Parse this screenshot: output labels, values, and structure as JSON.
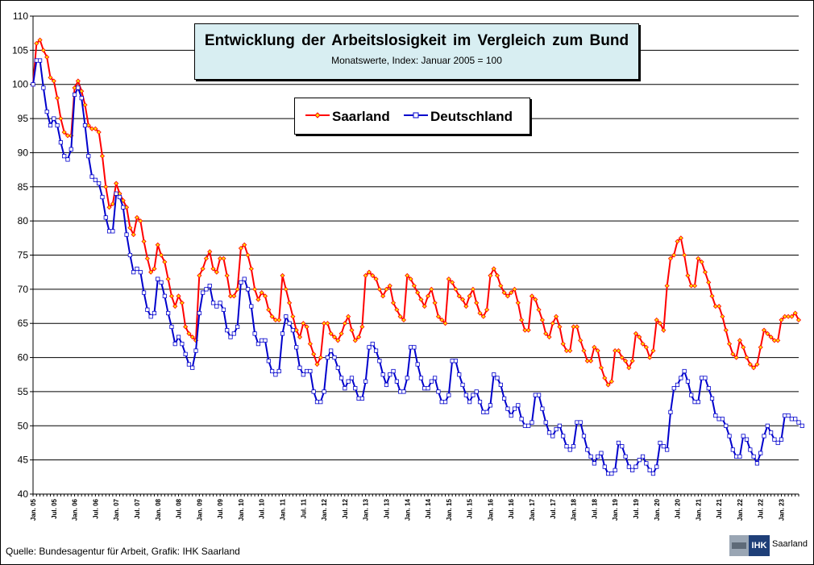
{
  "chart_data": {
    "type": "line",
    "title": "Entwicklung  der Arbeitslosigkeit  im Vergleich  zum Bund",
    "subtitle": "Monatswerte,  Index:  Januar 2005 = 100",
    "xlabel": "",
    "ylabel": "",
    "ylim": [
      40,
      110
    ],
    "yticks": [
      40,
      45,
      50,
      55,
      60,
      65,
      70,
      75,
      80,
      85,
      90,
      95,
      100,
      105,
      110
    ],
    "grid": true,
    "legend_position": "top-center",
    "x_start": "2005-01",
    "x_tick_labels": [
      "Jan. 05",
      "Jul. 05",
      "Jan. 06",
      "Jul. 06",
      "Jan. 07",
      "Jul. 07",
      "Jan. 08",
      "Jul. 08",
      "Jan. 09",
      "Jul. 09",
      "Jan. 10",
      "Jul. 10",
      "Jan. 11",
      "Jul. 11",
      "Jan. 12",
      "Jul. 12",
      "Jan. 13",
      "Jul. 13",
      "Jan. 14",
      "Jul. 14",
      "Jan. 15",
      "Jul. 15",
      "Jan. 16",
      "Jul. 16",
      "Jan. 17",
      "Jul. 17",
      "Jan. 18",
      "Jul. 18",
      "Jan. 19",
      "Jul. 19",
      "Jan. 20",
      "Jul. 20",
      "Jan. 21",
      "Jul. 21",
      "Jan. 22",
      "Jul. 22",
      "Jan. 23"
    ],
    "series": [
      {
        "name": "Saarland",
        "color": "#ff0000",
        "values": [
          100,
          106,
          106.5,
          105,
          104,
          101,
          100.5,
          98,
          95,
          93,
          92.5,
          92.5,
          99.5,
          100.5,
          99,
          97,
          94,
          93.5,
          93.5,
          93,
          89.5,
          85,
          82,
          82.5,
          85.5,
          84,
          83,
          82,
          79,
          78,
          80.5,
          80,
          77,
          74.5,
          72.5,
          73,
          76.5,
          75,
          74,
          71.5,
          69,
          67.5,
          69,
          68,
          64.5,
          63.5,
          63,
          62.5,
          72,
          73,
          74.5,
          75.5,
          73,
          72.5,
          74.5,
          74.5,
          72,
          69,
          69,
          70,
          76,
          76.5,
          75,
          73,
          70,
          68.5,
          69.5,
          69,
          67,
          66,
          65.5,
          65.5,
          72,
          70,
          68,
          66,
          64,
          63,
          65,
          64.5,
          62,
          60.5,
          59,
          60,
          65,
          65,
          63.5,
          63,
          62.5,
          63.5,
          65,
          66,
          64,
          62.5,
          63,
          64.5,
          72,
          72.5,
          72,
          71.5,
          70,
          69,
          70,
          70.5,
          68,
          67,
          66,
          65.5,
          72,
          71.5,
          70.5,
          69.5,
          68.5,
          67.5,
          69,
          70,
          68,
          66,
          65.5,
          65,
          71.5,
          71,
          70,
          69,
          68.5,
          67.5,
          69,
          70,
          68,
          66.5,
          66,
          67,
          72,
          73,
          72,
          70.5,
          69.5,
          69,
          69.5,
          70,
          68,
          65.5,
          64,
          64,
          69,
          68.5,
          67,
          65.5,
          63.5,
          63,
          65,
          66,
          64.5,
          62,
          61,
          61,
          64.5,
          64.5,
          62.5,
          61,
          59.5,
          59.5,
          61.5,
          61,
          58.5,
          57,
          56,
          56.5,
          61,
          61,
          60,
          59.5,
          58.5,
          59.5,
          63.5,
          63,
          62,
          61.5,
          60,
          61,
          65.5,
          65,
          64,
          70.5,
          74.5,
          75,
          77,
          77.5,
          75,
          72,
          70.5,
          70.5,
          74.5,
          74,
          72.5,
          71,
          69,
          67.5,
          67.5,
          66,
          64,
          62,
          60.5,
          60,
          62.5,
          61.5,
          60,
          59,
          58.5,
          59,
          61.5,
          64,
          63.5,
          63,
          62.5,
          62.5,
          65.5,
          66,
          66,
          66,
          66.5,
          65.5
        ]
      },
      {
        "name": "Deutschland",
        "color": "#0000cc",
        "values": [
          100,
          103.5,
          103.5,
          99.5,
          96,
          94,
          95,
          94,
          91.5,
          89.5,
          89,
          90.5,
          98.5,
          99.5,
          98,
          94,
          89.5,
          86.5,
          86,
          85.5,
          83.5,
          80.5,
          78.5,
          78.5,
          84,
          83.5,
          82,
          78,
          75,
          72.5,
          73,
          72.5,
          69.5,
          67,
          66,
          66.5,
          71.5,
          71,
          69,
          66.5,
          64.5,
          62,
          63,
          62,
          60.5,
          59,
          58.5,
          61,
          66.5,
          69.5,
          70,
          70.5,
          68,
          67.5,
          68,
          67,
          64,
          63,
          63.5,
          64.5,
          71,
          71.5,
          70,
          67.5,
          63.5,
          62,
          62.5,
          62.5,
          59.5,
          58,
          57.5,
          58,
          63.5,
          66,
          65,
          64,
          61.5,
          58.5,
          57.5,
          58,
          58,
          55,
          53.5,
          53.5,
          55,
          60,
          61,
          60,
          58.5,
          57,
          55.5,
          56.5,
          57,
          55.5,
          54,
          54,
          56.5,
          61.5,
          62,
          61,
          59.5,
          57.5,
          56,
          57.5,
          58,
          56.5,
          55,
          55,
          57,
          61.5,
          61.5,
          59,
          57,
          55.5,
          55.5,
          56.5,
          57,
          55,
          53.5,
          53.5,
          54.5,
          59.5,
          59.5,
          57.5,
          56,
          54.5,
          53.5,
          54.5,
          55,
          53.5,
          52,
          52,
          53,
          57.5,
          57,
          56,
          54,
          52.5,
          51.5,
          52.5,
          53,
          51,
          50,
          50,
          50.5,
          54.5,
          54.5,
          52.5,
          50.5,
          49,
          48.5,
          49.5,
          50,
          48.5,
          47,
          46.5,
          47,
          50.5,
          50.5,
          48.5,
          46.5,
          45.5,
          44.5,
          45.5,
          46,
          44,
          43,
          43,
          43.5,
          47.5,
          47,
          45.5,
          44,
          43.5,
          44,
          45,
          45.5,
          44.5,
          43.5,
          43,
          44,
          47.5,
          47,
          46.5,
          52,
          55.5,
          56,
          57,
          58,
          56.5,
          54.5,
          53.5,
          53.5,
          57,
          57,
          55.5,
          54,
          51.5,
          51,
          51,
          50,
          48.5,
          46.5,
          45.5,
          45.5,
          48.5,
          48,
          46.5,
          45.5,
          44.5,
          46,
          48.5,
          50,
          49,
          48,
          47.5,
          48,
          51.5,
          51.5,
          51,
          51,
          50.5,
          50
        ]
      }
    ]
  },
  "source_text": "Quelle:  Bundesagentur  für Arbeit, Grafik: IHK Saarland",
  "logo": {
    "box": "IHK",
    "text": "Saarland",
    "image_icon": "ihk-building-icon"
  }
}
